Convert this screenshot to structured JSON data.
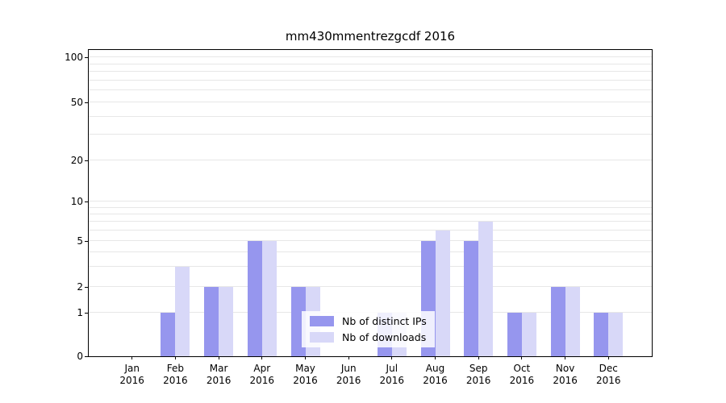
{
  "title": "mm430mmentrezgcdf 2016",
  "chart_data": {
    "type": "bar",
    "title": "mm430mmentrezgcdf 2016",
    "categories": [
      "Jan",
      "Feb",
      "Mar",
      "Apr",
      "May",
      "Jun",
      "Jul",
      "Aug",
      "Sep",
      "Oct",
      "Nov",
      "Dec"
    ],
    "year_label": "2016",
    "series": [
      {
        "name": "Nb of distinct IPs",
        "color": "#9696ee",
        "values": [
          0,
          1,
          2,
          5,
          2,
          0,
          1,
          5,
          5,
          1,
          2,
          1
        ]
      },
      {
        "name": "Nb of downloads",
        "color": "#d8d8f8",
        "values": [
          0,
          3,
          2,
          5,
          2,
          0,
          1,
          6,
          7,
          1,
          2,
          1
        ]
      }
    ],
    "yscale": "symlog",
    "ylim": [
      0,
      110
    ],
    "yticks": [
      0,
      1,
      2,
      5,
      10,
      20,
      50,
      100
    ],
    "minor_gridlines": [
      1,
      2,
      3,
      4,
      5,
      6,
      7,
      8,
      9,
      10,
      20,
      30,
      40,
      50,
      60,
      70,
      80,
      90,
      100
    ],
    "grid": true,
    "legend_position": "lower center",
    "xlabel": "",
    "ylabel": ""
  }
}
